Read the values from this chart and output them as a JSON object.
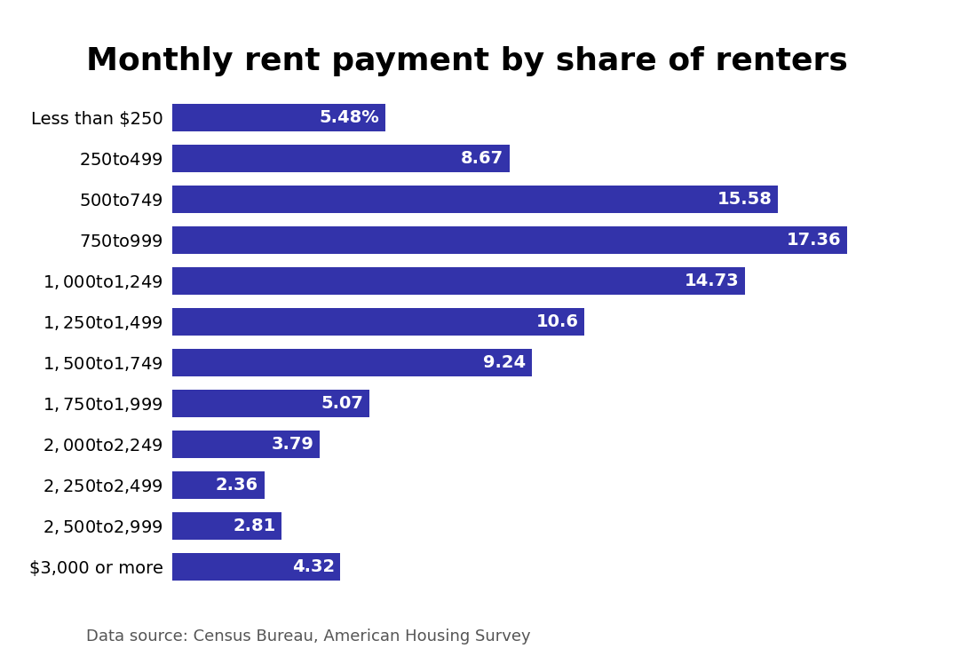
{
  "title": "Monthly rent payment by share of renters",
  "categories": [
    "Less than $250",
    "$250 to $499",
    "$500 to $749",
    "$750 to $999",
    "$1,000 to $1,249",
    "$1,250 to $1,499",
    "$1,500 to $1,749",
    "$1,750 to $1,999",
    "$2,000 to $2,249",
    "$2,250 to $2,499",
    "$2,500 to $2,999",
    "$3,000 or more"
  ],
  "values": [
    5.48,
    8.67,
    15.58,
    17.36,
    14.73,
    10.6,
    9.24,
    5.07,
    3.79,
    2.36,
    2.81,
    4.32
  ],
  "labels": [
    "5.48%",
    "8.67",
    "15.58",
    "17.36",
    "14.73",
    "10.6",
    "9.24",
    "5.07",
    "3.79",
    "2.36",
    "2.81",
    "4.32"
  ],
  "bar_color": "#3333aa",
  "label_color": "#ffffff",
  "background_color": "#ffffff",
  "title_fontsize": 26,
  "label_fontsize": 14,
  "category_fontsize": 14,
  "source_text": "Data source: Census Bureau, American Housing Survey",
  "source_fontsize": 13,
  "xlim": [
    0,
    19.5
  ]
}
